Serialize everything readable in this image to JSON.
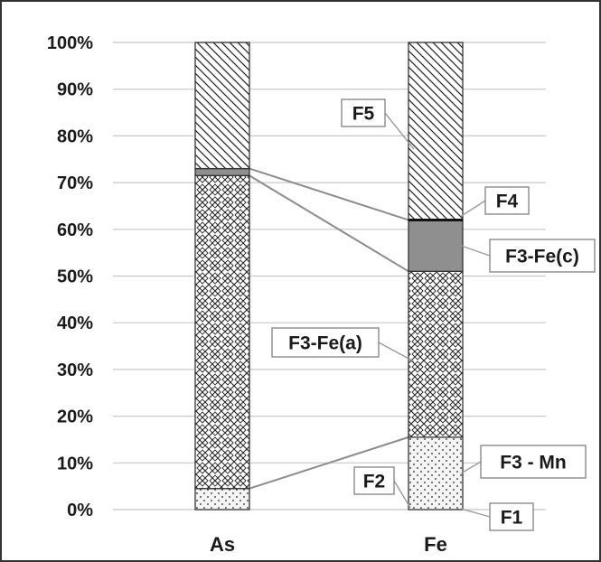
{
  "chart_data": {
    "type": "bar",
    "stacked": true,
    "normalized": true,
    "categories": [
      "As",
      "Fe"
    ],
    "series": [
      {
        "name": "F1",
        "values": [
          0,
          0
        ]
      },
      {
        "name": "F2",
        "values": [
          0,
          0
        ]
      },
      {
        "name": "F3 - Mn",
        "values": [
          4.5,
          15.5
        ]
      },
      {
        "name": "F3-Fe(a)",
        "values": [
          67,
          35.5
        ]
      },
      {
        "name": "F3-Fe(c)",
        "values": [
          1.5,
          11
        ]
      },
      {
        "name": "F4",
        "values": [
          0,
          0
        ]
      },
      {
        "name": "F5",
        "values": [
          27,
          38
        ]
      }
    ],
    "yticks": [
      "0%",
      "10%",
      "20%",
      "30%",
      "40%",
      "50%",
      "60%",
      "70%",
      "80%",
      "90%",
      "100%"
    ],
    "ylim": [
      0,
      100
    ],
    "grid": true,
    "legend": "callouts",
    "colors": {
      "F3 - Mn": "#f2f2f2",
      "F3-Fe(a)": "#ffffff",
      "F3-Fe(c)": "#8f8f8f",
      "F5": "#ffffff",
      "edge": "#333333",
      "grid": "#c8c8c8",
      "connector": "#8c8c8c"
    },
    "patterns": {
      "F3 - Mn": "dots",
      "F3-Fe(a)": "crosshatch",
      "F3-Fe(c)": "solid",
      "F5": "diagonal"
    }
  }
}
